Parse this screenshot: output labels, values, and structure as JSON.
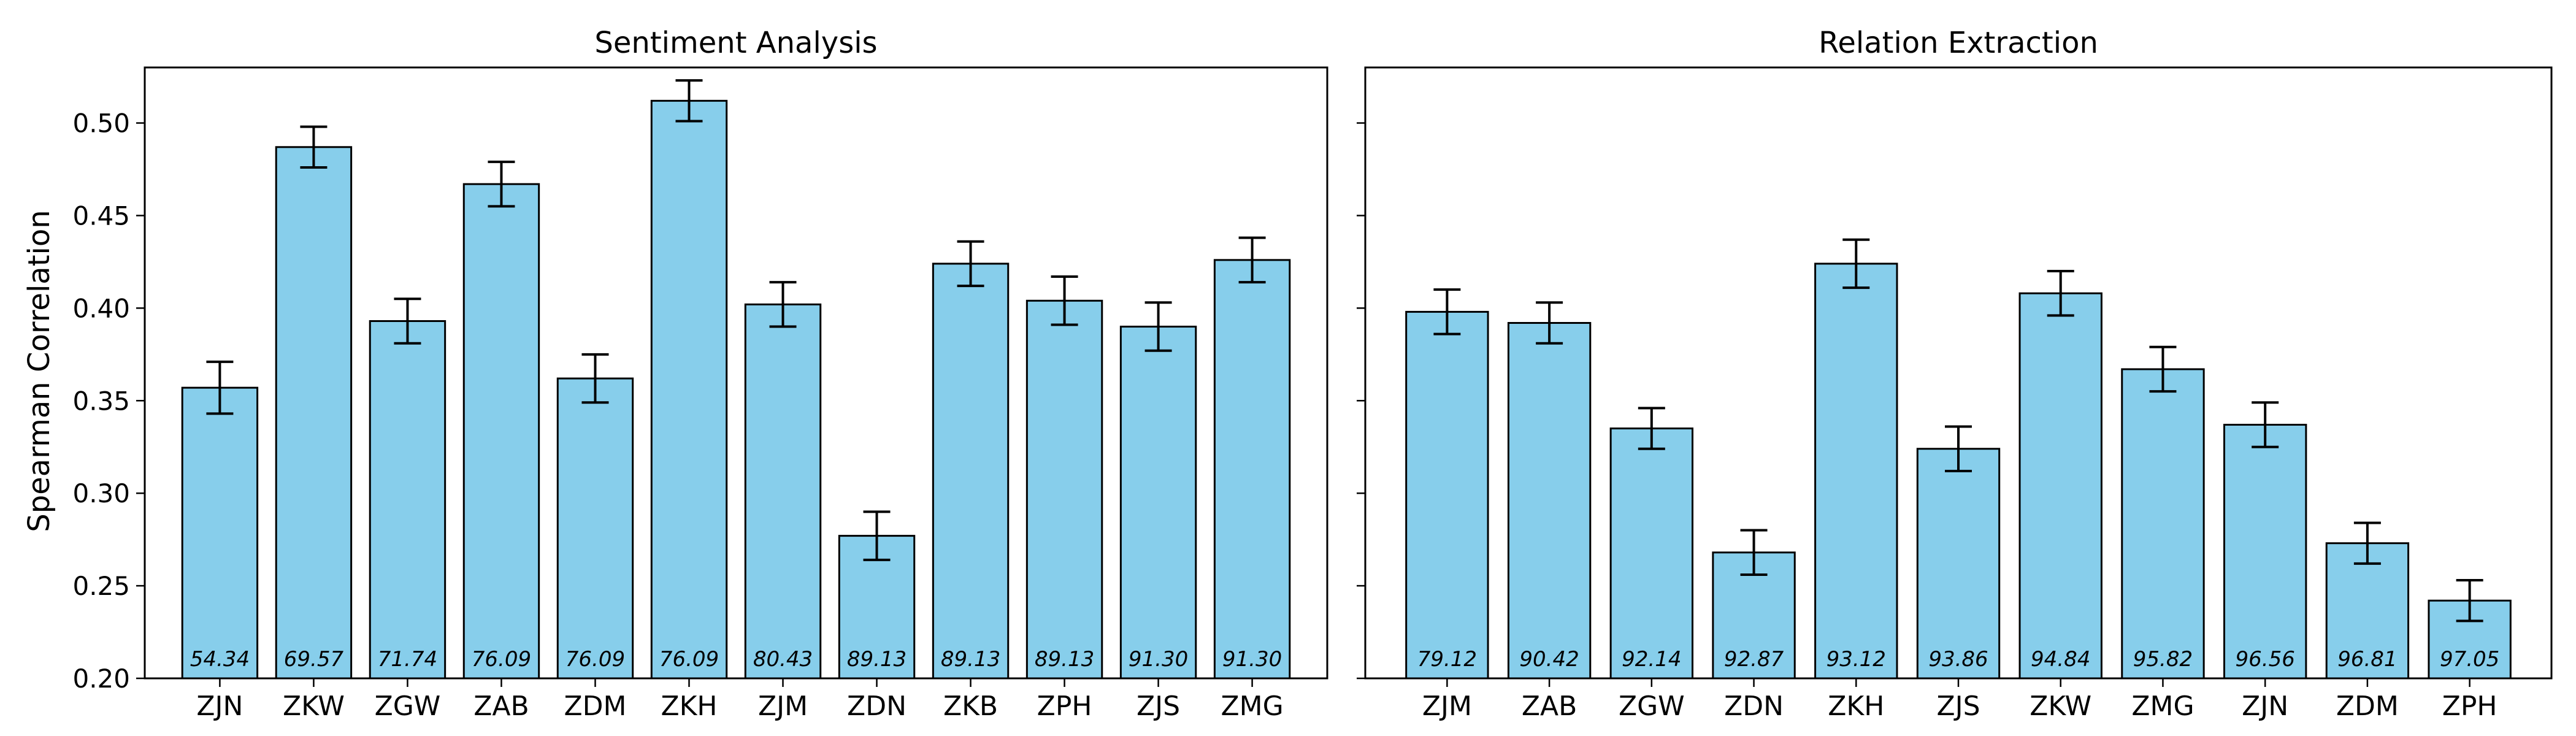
{
  "figure": {
    "ylabel": "Spearman Correlation"
  },
  "chart_data": [
    {
      "type": "bar",
      "title": "Sentiment Analysis",
      "xlabel": "",
      "ylabel": "Spearman Correlation",
      "ylim": [
        0.2,
        0.53
      ],
      "yticks": [
        "0.20",
        "0.25",
        "0.30",
        "0.35",
        "0.40",
        "0.45",
        "0.50"
      ],
      "categories": [
        "ZJN",
        "ZKW",
        "ZGW",
        "ZAB",
        "ZDM",
        "ZKH",
        "ZJM",
        "ZDN",
        "ZKB",
        "ZPH",
        "ZJS",
        "ZMG"
      ],
      "values": [
        0.357,
        0.487,
        0.393,
        0.467,
        0.362,
        0.512,
        0.402,
        0.277,
        0.424,
        0.404,
        0.39,
        0.426
      ],
      "errors": [
        0.014,
        0.011,
        0.012,
        0.012,
        0.013,
        0.011,
        0.012,
        0.013,
        0.012,
        0.013,
        0.013,
        0.012
      ],
      "bar_labels": [
        "54.34",
        "69.57",
        "71.74",
        "76.09",
        "76.09",
        "76.09",
        "80.43",
        "89.13",
        "89.13",
        "89.13",
        "91.30",
        "91.30"
      ],
      "grid": false,
      "bar_color": "#87CEEB"
    },
    {
      "type": "bar",
      "title": "Relation Extraction",
      "xlabel": "",
      "ylabel": "",
      "ylim": [
        0.2,
        0.53
      ],
      "yticks": [],
      "categories": [
        "ZJM",
        "ZAB",
        "ZGW",
        "ZDN",
        "ZKH",
        "ZJS",
        "ZKW",
        "ZMG",
        "ZJN",
        "ZDM",
        "ZPH"
      ],
      "values": [
        0.398,
        0.392,
        0.335,
        0.268,
        0.424,
        0.324,
        0.408,
        0.367,
        0.337,
        0.273,
        0.242
      ],
      "errors": [
        0.012,
        0.011,
        0.011,
        0.012,
        0.013,
        0.012,
        0.012,
        0.012,
        0.012,
        0.011,
        0.011
      ],
      "bar_labels": [
        "79.12",
        "90.42",
        "92.14",
        "92.87",
        "93.12",
        "93.86",
        "94.84",
        "95.82",
        "96.56",
        "96.81",
        "97.05"
      ],
      "grid": false,
      "bar_color": "#87CEEB"
    }
  ]
}
